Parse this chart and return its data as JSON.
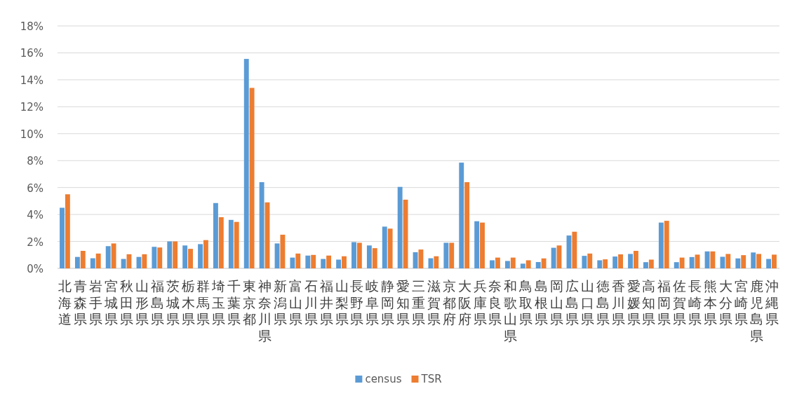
{
  "chart_data": {
    "type": "bar",
    "categories": [
      "北海道",
      "青森県",
      "岩手県",
      "宮城県",
      "秋田県",
      "山形県",
      "福島県",
      "茨城県",
      "栃木県",
      "群馬県",
      "埼玉県",
      "千葉県",
      "東京都",
      "神奈川県",
      "新潟県",
      "富山県",
      "石川県",
      "福井県",
      "山梨県",
      "長野県",
      "岐阜県",
      "静岡県",
      "愛知県",
      "三重県",
      "滋賀県",
      "京都府",
      "大阪府",
      "兵庫県",
      "奈良県",
      "和歌山県",
      "鳥取県",
      "島根県",
      "岡山県",
      "広島県",
      "山口県",
      "徳島県",
      "香川県",
      "愛媛県",
      "高知県",
      "福岡県",
      "佐賀県",
      "長崎県",
      "熊本県",
      "大分県",
      "宮崎県",
      "鹿児島県",
      "沖縄県"
    ],
    "series": [
      {
        "name": "census",
        "color": "#5b9bd5",
        "values": [
          4.5,
          0.85,
          0.75,
          1.65,
          0.7,
          0.85,
          1.6,
          2.0,
          1.7,
          1.8,
          4.85,
          3.6,
          15.55,
          6.4,
          1.85,
          0.8,
          0.95,
          0.7,
          0.65,
          1.95,
          1.7,
          3.1,
          6.05,
          1.2,
          0.75,
          1.9,
          7.85,
          3.5,
          0.6,
          0.55,
          0.35,
          0.47,
          1.53,
          2.44,
          0.93,
          0.6,
          0.88,
          1.07,
          0.46,
          3.4,
          0.46,
          0.84,
          1.26,
          0.86,
          0.74,
          1.18,
          0.7
        ]
      },
      {
        "name": "TSR",
        "color": "#ed7d31",
        "values": [
          5.5,
          1.3,
          1.1,
          1.85,
          1.05,
          1.05,
          1.55,
          2.0,
          1.45,
          2.1,
          3.8,
          3.45,
          13.4,
          4.9,
          2.5,
          1.1,
          1.0,
          0.95,
          0.9,
          1.9,
          1.5,
          2.95,
          5.1,
          1.4,
          0.9,
          1.9,
          6.4,
          3.4,
          0.8,
          0.8,
          0.6,
          0.74,
          1.7,
          2.72,
          1.1,
          0.67,
          1.04,
          1.3,
          0.65,
          3.53,
          0.8,
          1.02,
          1.26,
          1.07,
          0.98,
          1.07,
          1.02
        ]
      }
    ],
    "ylim": [
      0,
      18
    ],
    "yticks": [
      {
        "value": 0,
        "label": "0%"
      },
      {
        "value": 2,
        "label": "2%"
      },
      {
        "value": 4,
        "label": "4%"
      },
      {
        "value": 6,
        "label": "6%"
      },
      {
        "value": 8,
        "label": "8%"
      },
      {
        "value": 10,
        "label": "10%"
      },
      {
        "value": 12,
        "label": "12%"
      },
      {
        "value": 14,
        "label": "14%"
      },
      {
        "value": 16,
        "label": "16%"
      },
      {
        "value": 18,
        "label": "18%"
      }
    ],
    "grid": "y",
    "legend": "bottom"
  }
}
